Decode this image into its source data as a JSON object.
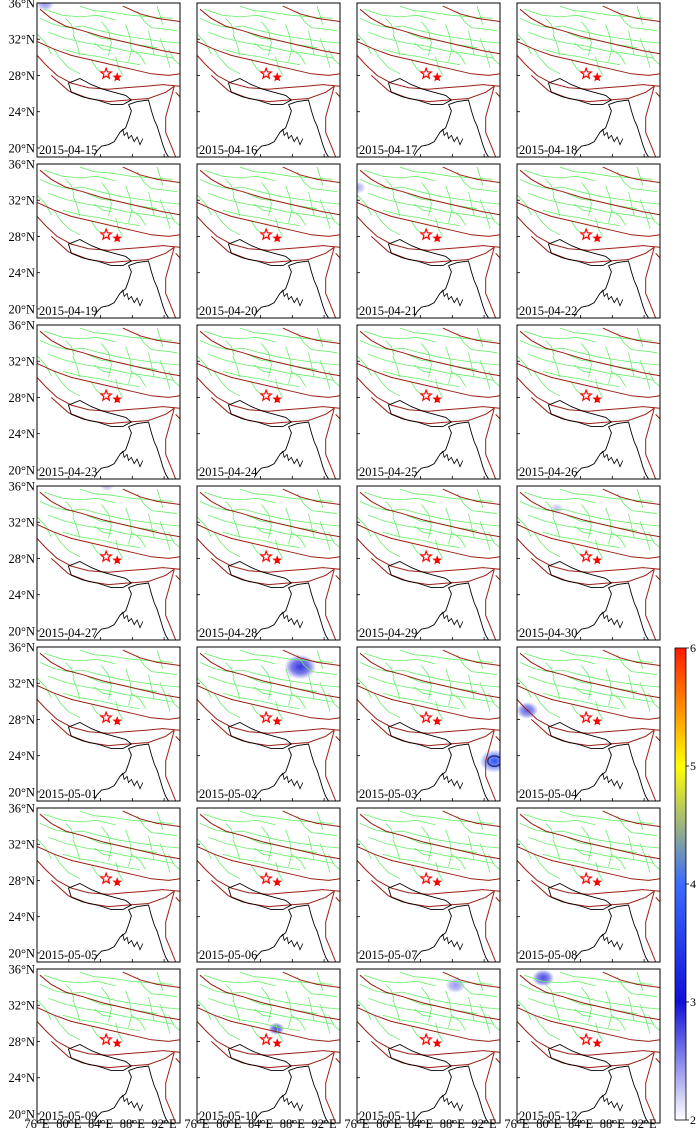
{
  "figure": {
    "y_ticks": [
      "36°N",
      "32°N",
      "28°N",
      "24°N",
      "20°N"
    ],
    "x_ticks": [
      "76°E",
      "80°E",
      "84°E",
      "88°E",
      "92°E"
    ],
    "panels": [
      {
        "date": "2015-04-15",
        "anomalies": [
          {
            "lon": 77.0,
            "lat": 35.9,
            "intensity": 2.5,
            "r": 0.9
          }
        ]
      },
      {
        "date": "2015-04-16",
        "anomalies": []
      },
      {
        "date": "2015-04-17",
        "anomalies": []
      },
      {
        "date": "2015-04-18",
        "anomalies": []
      },
      {
        "date": "2015-04-19",
        "anomalies": []
      },
      {
        "date": "2015-04-20",
        "anomalies": []
      },
      {
        "date": "2015-04-21",
        "anomalies": [
          {
            "lon": 76.1,
            "lat": 33.4,
            "intensity": 2.4,
            "r": 0.8
          }
        ]
      },
      {
        "date": "2015-04-22",
        "anomalies": []
      },
      {
        "date": "2015-04-23",
        "anomalies": []
      },
      {
        "date": "2015-04-24",
        "anomalies": []
      },
      {
        "date": "2015-04-25",
        "anomalies": []
      },
      {
        "date": "2015-04-26",
        "anomalies": []
      },
      {
        "date": "2015-04-27",
        "anomalies": [
          {
            "lon": 84.8,
            "lat": 36.0,
            "intensity": 2.3,
            "r": 0.7
          }
        ]
      },
      {
        "date": "2015-04-28",
        "anomalies": []
      },
      {
        "date": "2015-04-29",
        "anomalies": []
      },
      {
        "date": "2015-04-30",
        "anomalies": [
          {
            "lon": 81.0,
            "lat": 33.5,
            "intensity": 2.3,
            "r": 0.7
          }
        ]
      },
      {
        "date": "2015-05-01",
        "anomalies": []
      },
      {
        "date": "2015-05-02",
        "anomalies": [
          {
            "lon": 89.0,
            "lat": 33.8,
            "intensity": 3.0,
            "r": 1.6
          }
        ]
      },
      {
        "date": "2015-05-03",
        "anomalies": [
          {
            "lon": 93.3,
            "lat": 23.4,
            "intensity": 3.7,
            "r": 1.5
          }
        ]
      },
      {
        "date": "2015-05-04",
        "anomalies": [
          {
            "lon": 77.3,
            "lat": 29.0,
            "intensity": 2.8,
            "r": 1.1
          }
        ]
      },
      {
        "date": "2015-05-05",
        "anomalies": []
      },
      {
        "date": "2015-05-06",
        "anomalies": []
      },
      {
        "date": "2015-05-07",
        "anomalies": []
      },
      {
        "date": "2015-05-08",
        "anomalies": []
      },
      {
        "date": "2015-05-09",
        "anomalies": []
      },
      {
        "date": "2015-05-10",
        "anomalies": [
          {
            "lon": 86.0,
            "lat": 29.4,
            "intensity": 2.9,
            "r": 0.8
          }
        ]
      },
      {
        "date": "2015-05-11",
        "anomalies": [
          {
            "lon": 88.4,
            "lat": 34.2,
            "intensity": 2.5,
            "r": 1.0
          }
        ]
      },
      {
        "date": "2015-05-12",
        "anomalies": [
          {
            "lon": 79.3,
            "lat": 35.0,
            "intensity": 2.9,
            "r": 1.1
          }
        ]
      }
    ]
  },
  "colorbar": {
    "ticks": [
      "6",
      "5",
      "4",
      "3",
      "2"
    ],
    "min": 2,
    "max": 6,
    "colors": [
      "#ffffff",
      "#1010d8",
      "#ffff00",
      "#ff1a00"
    ]
  },
  "map_colors": {
    "faults": "#66ee66",
    "blocks": "#9a1f14",
    "border": "#000000",
    "epicenter": "#ff0000"
  }
}
